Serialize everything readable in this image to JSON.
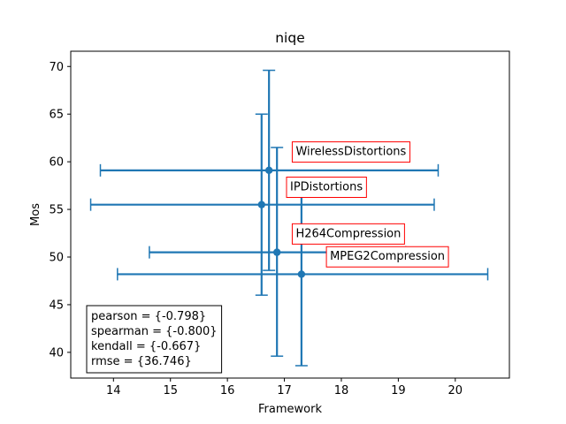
{
  "chart_data": {
    "type": "scatter",
    "title": "niqe",
    "xlabel": "Framework",
    "ylabel": "Mos",
    "xlim": [
      13.25,
      20.95
    ],
    "ylim": [
      37.3,
      71.6
    ],
    "xticks": [
      14,
      15,
      16,
      17,
      18,
      19,
      20
    ],
    "yticks": [
      40,
      45,
      50,
      55,
      60,
      65,
      70
    ],
    "xtick_labels": [
      "14",
      "15",
      "16",
      "17",
      "18",
      "19",
      "20"
    ],
    "ytick_labels": [
      "40",
      "45",
      "50",
      "55",
      "60",
      "65",
      "70"
    ],
    "grid": false,
    "color": "#1f77b4",
    "points": [
      {
        "label": "WirelessDistortions",
        "x": 16.73,
        "y": 59.1,
        "xerr": [
          13.77,
          19.7
        ],
        "yerr": [
          48.6,
          69.6
        ]
      },
      {
        "label": "IPDistortions",
        "x": 16.6,
        "y": 55.5,
        "xerr": [
          13.6,
          19.63
        ],
        "yerr": [
          46.0,
          65.0
        ]
      },
      {
        "label": "H264Compression",
        "x": 16.87,
        "y": 50.5,
        "xerr": [
          14.63,
          19.13
        ],
        "yerr": [
          39.6,
          61.5
        ]
      },
      {
        "label": "MPEG2Compression",
        "x": 17.3,
        "y": 48.2,
        "xerr": [
          14.07,
          20.57
        ],
        "yerr": [
          38.6,
          57.8
        ]
      }
    ],
    "annotations": [
      {
        "text": "WirelessDistortions",
        "x": 17.2,
        "y": 60.7
      },
      {
        "text": "IPDistortions",
        "x": 17.1,
        "y": 57.0
      },
      {
        "text": "H264Compression",
        "x": 17.2,
        "y": 52.1
      },
      {
        "text": "MPEG2Compression",
        "x": 17.8,
        "y": 49.7
      }
    ],
    "stats": {
      "lines": [
        "pearson = {-0.798}",
        "spearman = {-0.800}",
        "kendall = {-0.667}",
        "rmse = {36.746}"
      ],
      "placement": "lower-left"
    }
  }
}
